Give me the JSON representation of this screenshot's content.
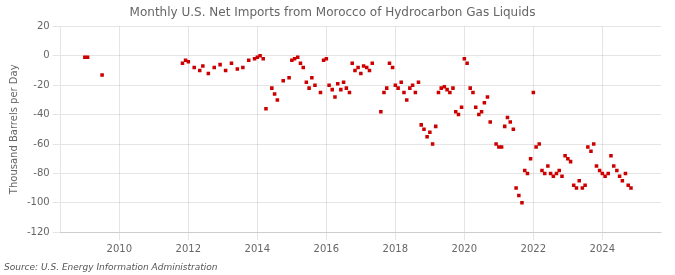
{
  "chart_data": {
    "type": "scatter",
    "title": "Monthly U.S. Net Imports from Morocco of Hydrocarbon Gas Liquids",
    "y_label": "Thousand Barrels per Day",
    "annotations": [
      "Source: U.S. Energy Information Administration"
    ],
    "color": "#cc0000",
    "marker": "square",
    "grid": true,
    "xlim": [
      2008.3,
      2025.7
    ],
    "ylim": [
      -120,
      20
    ],
    "xticks": [
      2010,
      2012,
      2014,
      2016,
      2018,
      2020,
      2022,
      2024
    ],
    "yticks": [
      20,
      0,
      -20,
      -40,
      -60,
      -80,
      -100,
      -120
    ],
    "x": [
      2009.0,
      2009.08,
      2009.5,
      2011.83,
      2011.92,
      2012.0,
      2012.17,
      2012.33,
      2012.42,
      2012.58,
      2012.75,
      2012.92,
      2013.08,
      2013.25,
      2013.42,
      2013.58,
      2013.75,
      2013.92,
      2014.0,
      2014.08,
      2014.17,
      2014.25,
      2014.42,
      2014.5,
      2014.58,
      2014.75,
      2014.92,
      2015.0,
      2015.08,
      2015.17,
      2015.25,
      2015.33,
      2015.42,
      2015.5,
      2015.58,
      2015.67,
      2015.83,
      2015.92,
      2016.0,
      2016.08,
      2016.17,
      2016.25,
      2016.33,
      2016.42,
      2016.5,
      2016.58,
      2016.67,
      2016.75,
      2016.83,
      2016.92,
      2017.0,
      2017.08,
      2017.17,
      2017.25,
      2017.33,
      2017.58,
      2017.67,
      2017.75,
      2017.83,
      2017.92,
      2018.0,
      2018.08,
      2018.17,
      2018.25,
      2018.33,
      2018.42,
      2018.5,
      2018.58,
      2018.67,
      2018.75,
      2018.83,
      2018.92,
      2019.0,
      2019.08,
      2019.17,
      2019.25,
      2019.33,
      2019.42,
      2019.5,
      2019.58,
      2019.67,
      2019.75,
      2019.83,
      2019.92,
      2020.0,
      2020.08,
      2020.17,
      2020.25,
      2020.33,
      2020.42,
      2020.5,
      2020.58,
      2020.67,
      2020.75,
      2020.92,
      2021.0,
      2021.08,
      2021.17,
      2021.25,
      2021.33,
      2021.42,
      2021.5,
      2021.58,
      2021.67,
      2021.75,
      2021.83,
      2021.92,
      2022.0,
      2022.08,
      2022.17,
      2022.25,
      2022.33,
      2022.42,
      2022.5,
      2022.58,
      2022.67,
      2022.75,
      2022.83,
      2022.92,
      2023.0,
      2023.08,
      2023.17,
      2023.25,
      2023.33,
      2023.42,
      2023.5,
      2023.58,
      2023.67,
      2023.75,
      2023.83,
      2023.92,
      2024.0,
      2024.08,
      2024.17,
      2024.25,
      2024.33,
      2024.42,
      2024.5,
      2024.58,
      2024.67,
      2024.75,
      2024.83
    ],
    "values": [
      -1,
      -1,
      -13,
      -5,
      -3,
      -4,
      -8,
      -10,
      -7,
      -12,
      -8,
      -6,
      -10,
      -5,
      -9,
      -8,
      -3,
      -2,
      -1,
      0,
      -2,
      -36,
      -22,
      -26,
      -30,
      -17,
      -15,
      -3,
      -2,
      -1,
      -5,
      -8,
      -18,
      -22,
      -15,
      -20,
      -25,
      -3,
      -2,
      -20,
      -23,
      -28,
      -19,
      -23,
      -18,
      -22,
      -25,
      -5,
      -10,
      -8,
      -12,
      -7,
      -8,
      -10,
      -5,
      -38,
      -25,
      -22,
      -5,
      -8,
      -20,
      -22,
      -18,
      -25,
      -30,
      -22,
      -20,
      -25,
      -18,
      -47,
      -50,
      -55,
      -52,
      -60,
      -48,
      -25,
      -22,
      -21,
      -23,
      -25,
      -22,
      -38,
      -40,
      -35,
      -2,
      -5,
      -22,
      -25,
      -35,
      -40,
      -38,
      -32,
      -28,
      -45,
      -60,
      -62,
      -62,
      -48,
      -42,
      -45,
      -50,
      -90,
      -95,
      -100,
      -78,
      -80,
      -70,
      -25,
      -62,
      -60,
      -78,
      -80,
      -75,
      -80,
      -82,
      -80,
      -78,
      -82,
      -68,
      -70,
      -72,
      -88,
      -90,
      -85,
      -90,
      -88,
      -62,
      -65,
      -60,
      -75,
      -78,
      -80,
      -82,
      -80,
      -68,
      -75,
      -78,
      -82,
      -85,
      -80,
      -88,
      -90
    ]
  }
}
